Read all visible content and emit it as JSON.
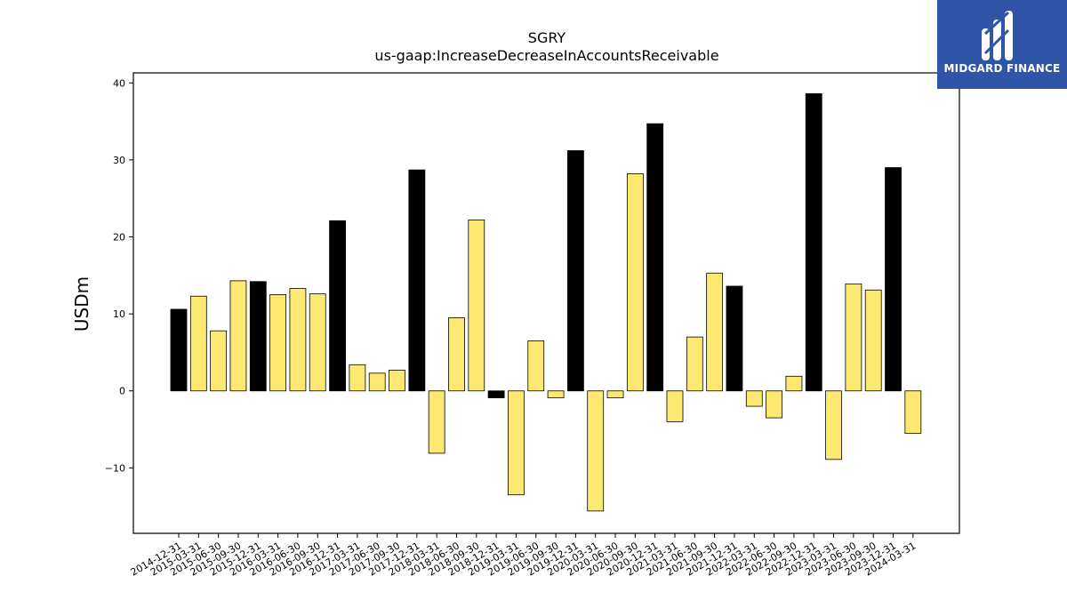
{
  "chart_data": {
    "type": "bar",
    "title": "SGRY",
    "subtitle": "us-gaap:IncreaseDecreaseInAccountsReceivable",
    "xlabel": "",
    "ylabel": "USDm",
    "ylim": [
      -18.5,
      41.3
    ],
    "yticks": [
      -10,
      0,
      10,
      20,
      30,
      40
    ],
    "grid": false,
    "categories": [
      "2014-12-31",
      "2015-03-31",
      "2015-06-30",
      "2015-09-30",
      "2015-12-31",
      "2016-03-31",
      "2016-06-30",
      "2016-09-30",
      "2016-12-31",
      "2017-03-31",
      "2017-06-30",
      "2017-09-30",
      "2017-12-31",
      "2018-03-31",
      "2018-06-30",
      "2018-09-30",
      "2018-12-31",
      "2019-03-31",
      "2019-06-30",
      "2019-09-30",
      "2019-12-31",
      "2020-03-31",
      "2020-06-30",
      "2020-09-30",
      "2020-12-31",
      "2021-03-31",
      "2021-06-30",
      "2021-09-30",
      "2021-12-31",
      "2022-03-31",
      "2022-06-30",
      "2022-09-30",
      "2022-12-31",
      "2023-03-31",
      "2023-06-30",
      "2023-09-30",
      "2023-12-31",
      "2024-03-31"
    ],
    "values": [
      10.6,
      12.3,
      7.8,
      14.3,
      14.2,
      12.5,
      13.3,
      12.6,
      22.1,
      3.4,
      2.3,
      2.7,
      28.7,
      -8.1,
      9.5,
      22.2,
      -0.9,
      -13.5,
      6.5,
      -0.9,
      31.2,
      -15.6,
      -0.9,
      28.2,
      34.7,
      -4.0,
      7.0,
      15.3,
      13.6,
      -2.0,
      -3.5,
      1.9,
      38.6,
      -8.9,
      13.9,
      13.1,
      29.0,
      -5.5
    ],
    "annual_flags": [
      1,
      0,
      0,
      0,
      1,
      0,
      0,
      0,
      1,
      0,
      0,
      0,
      1,
      0,
      0,
      0,
      1,
      0,
      0,
      0,
      1,
      0,
      0,
      0,
      1,
      0,
      0,
      0,
      1,
      0,
      0,
      0,
      1,
      0,
      0,
      0,
      1,
      0
    ],
    "colors": {
      "annual": "#000000",
      "quarterly": "#fde872",
      "edge": "#000000"
    }
  },
  "logo": {
    "text": "MIDGARD FINANCE",
    "icon": "midgard-logo-icon"
  }
}
